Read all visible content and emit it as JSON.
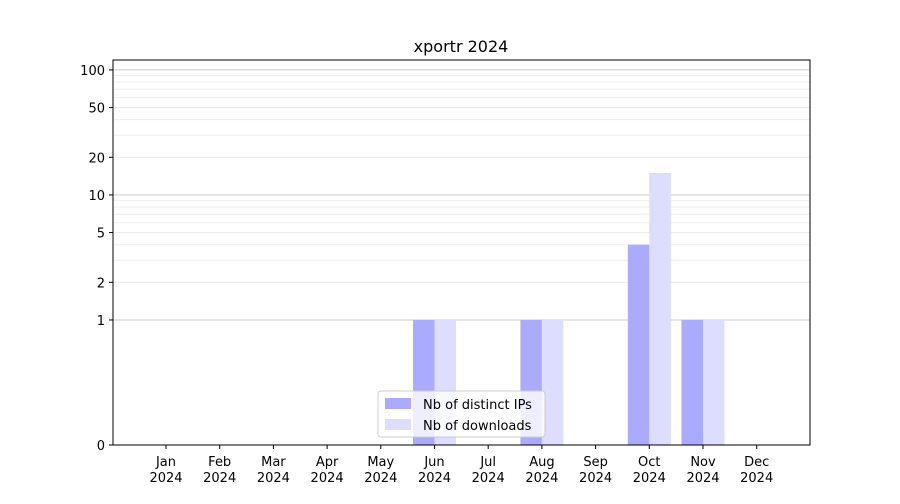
{
  "chart_data": {
    "type": "bar",
    "title": "xportr 2024",
    "xlabel": "",
    "ylabel": "",
    "categories": [
      {
        "month": "Jan",
        "year": "2024"
      },
      {
        "month": "Feb",
        "year": "2024"
      },
      {
        "month": "Mar",
        "year": "2024"
      },
      {
        "month": "Apr",
        "year": "2024"
      },
      {
        "month": "May",
        "year": "2024"
      },
      {
        "month": "Jun",
        "year": "2024"
      },
      {
        "month": "Jul",
        "year": "2024"
      },
      {
        "month": "Aug",
        "year": "2024"
      },
      {
        "month": "Sep",
        "year": "2024"
      },
      {
        "month": "Oct",
        "year": "2024"
      },
      {
        "month": "Nov",
        "year": "2024"
      },
      {
        "month": "Dec",
        "year": "2024"
      }
    ],
    "series": [
      {
        "name": "Nb of distinct IPs",
        "color": "#aaaaff",
        "values": [
          0,
          0,
          0,
          0,
          0,
          1,
          0,
          1,
          0,
          4,
          1,
          0
        ]
      },
      {
        "name": "Nb of downloads",
        "color": "#ddddff",
        "values": [
          0,
          0,
          0,
          0,
          0,
          1,
          0,
          1,
          0,
          15,
          1,
          0
        ]
      }
    ],
    "y_scale": "symlog",
    "yticks": [
      0,
      1,
      2,
      5,
      10,
      20,
      50,
      100
    ],
    "ylim": [
      0,
      120
    ],
    "grid": true,
    "legend_position": "lower-center"
  }
}
